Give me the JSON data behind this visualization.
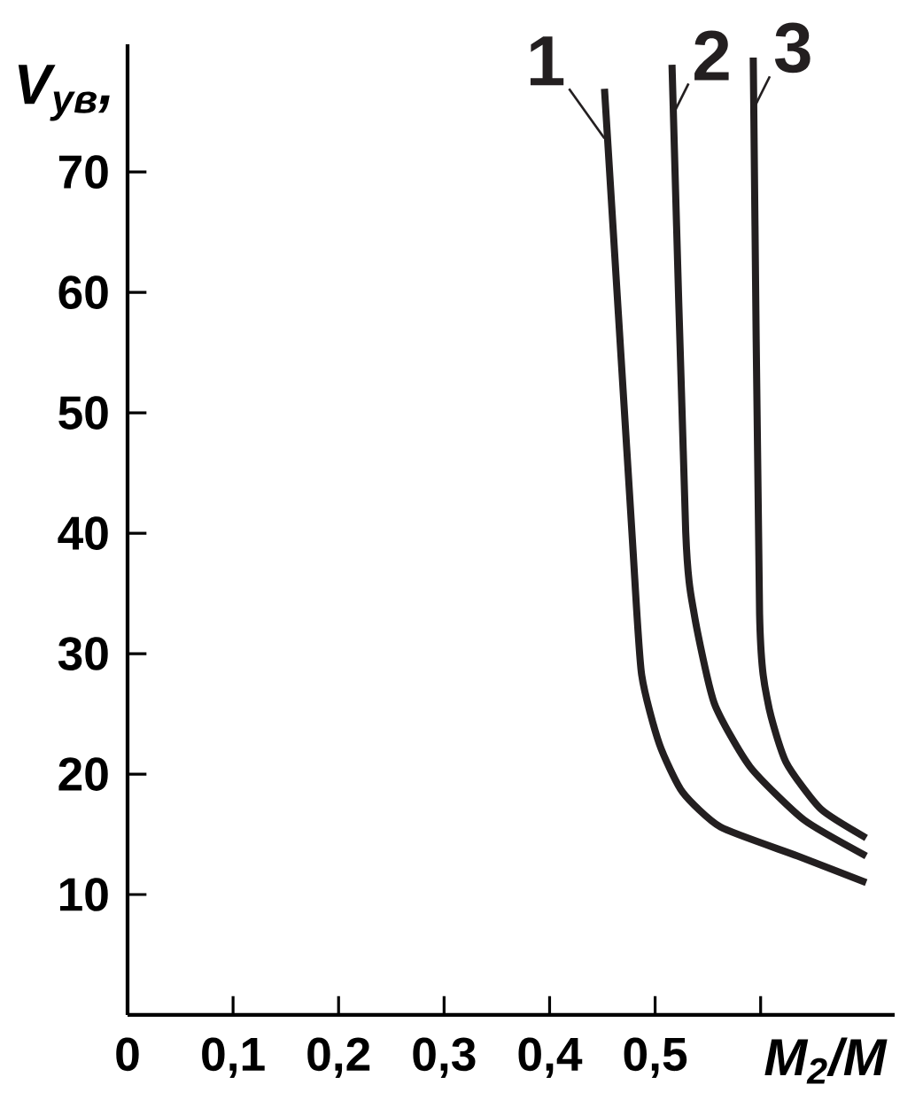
{
  "chart_data": {
    "type": "line",
    "xlabel": "M$_{2}$/M",
    "ylabel": "V$_{ув}$,",
    "xlim": [
      0,
      0.727
    ],
    "ylim": [
      0,
      80.6
    ],
    "xticks": [
      0,
      {
        "value": 0.1,
        "label": "0,1"
      },
      {
        "value": 0.2,
        "label": "0,2"
      },
      {
        "value": 0.3,
        "label": "0,3"
      },
      {
        "value": 0.4,
        "label": "0,4"
      },
      {
        "value": 0.5,
        "label": "0,5"
      },
      {
        "value": 0.6,
        "label": null
      }
    ],
    "yticks": [
      10,
      20,
      30,
      40,
      50,
      60,
      70
    ],
    "grid": false,
    "legend": "top",
    "marker": "none",
    "line_style": "solid",
    "series": [
      {
        "name": "1",
        "color": "#231f20",
        "x": [
          0.452,
          0.478,
          0.487,
          0.504,
          0.526,
          0.562,
          0.635,
          0.7
        ],
        "values": [
          76.9,
          40.1,
          28.4,
          22.5,
          18.5,
          15.6,
          13.2,
          11.0
        ]
      },
      {
        "name": "2",
        "color": "#231f20",
        "x": [
          0.516,
          0.529,
          0.537,
          0.556,
          0.59,
          0.641,
          0.7
        ],
        "values": [
          78.9,
          40.1,
          33.3,
          25.9,
          20.6,
          16.2,
          13.2
        ]
      },
      {
        "name": "3",
        "color": "#231f20",
        "x": [
          0.593,
          0.599,
          0.607,
          0.624,
          0.657,
          0.7
        ],
        "values": [
          79.5,
          33.3,
          25.9,
          21.0,
          17.1,
          14.7
        ]
      }
    ]
  }
}
